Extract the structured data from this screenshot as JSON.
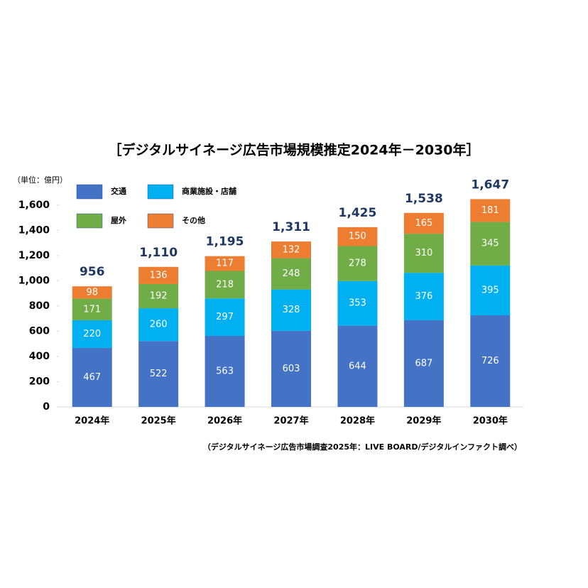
{
  "chart_data": {
    "type": "stacked_bar",
    "title": "［デジタルサイネージ広告市場規模推定2024年－2030年］",
    "unit_label": "（単位：億円）",
    "source": "（デジタルサイネージ広告市場調査2025年：LIVE BOARD/デジタルインファクト調べ）",
    "categories": [
      "2024年",
      "2025年",
      "2026年",
      "2027年",
      "2028年",
      "2029年",
      "2030年"
    ],
    "series": [
      {
        "name": "交通",
        "color": "#4472c4",
        "values": [
          467,
          522,
          563,
          603,
          644,
          687,
          726
        ]
      },
      {
        "name": "商業施設・店舗",
        "color": "#00b0f0",
        "values": [
          220,
          260,
          297,
          328,
          353,
          376,
          395
        ]
      },
      {
        "name": "屋外",
        "color": "#70ad47",
        "values": [
          171,
          192,
          218,
          248,
          278,
          310,
          345
        ]
      },
      {
        "name": "その他",
        "color": "#ed7d31",
        "values": [
          98,
          136,
          117,
          132,
          150,
          165,
          181
        ]
      }
    ],
    "totals": {
      "values": [
        956,
        1110,
        1195,
        1311,
        1425,
        1538,
        1647
      ],
      "value_labels": [
        "956",
        "1,110",
        "1,195",
        "1,311",
        "1,425",
        "1,538",
        "1,647"
      ]
    },
    "ylim": [
      0,
      1700
    ],
    "yticks": [
      0,
      200,
      400,
      600,
      800,
      {
        "value": 1000,
        "label": "1,000"
      },
      {
        "value": 1200,
        "label": "1,200"
      },
      {
        "value": 1400,
        "label": "1,400"
      },
      {
        "value": 1600,
        "label": "1,600"
      }
    ]
  }
}
